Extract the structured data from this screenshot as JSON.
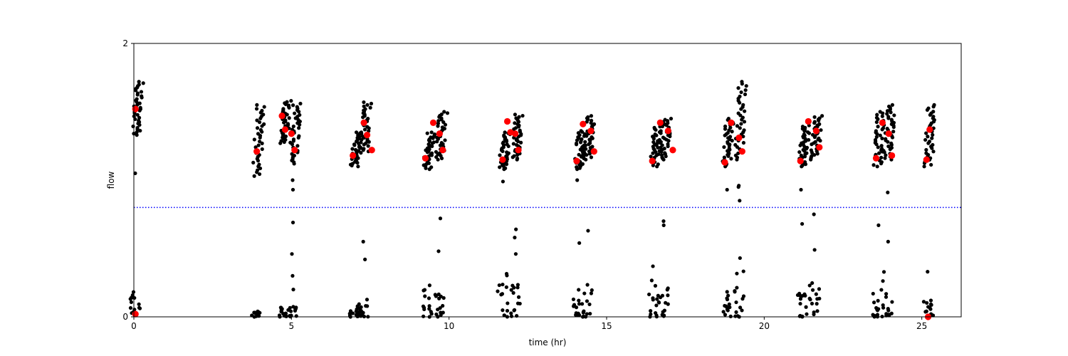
{
  "chart_data": {
    "type": "scatter",
    "title": "",
    "xlabel": "time (hr)",
    "ylabel": "flow",
    "xlim": [
      0,
      26.25
    ],
    "ylim": [
      0,
      2
    ],
    "xticks": [
      0,
      5,
      10,
      15,
      20,
      25
    ],
    "xtick_labels": [
      "0",
      "5",
      "10",
      "15",
      "20",
      "25"
    ],
    "yticks": [
      0,
      2
    ],
    "ytick_labels": [
      "0",
      "2"
    ],
    "grid": false,
    "threshold_line": {
      "y": 0.8,
      "color": "#0000ff",
      "style": "dotted"
    },
    "colors": {
      "raw": "#000000",
      "highlight": "#ff0000"
    },
    "clusters": [
      {
        "x": 0.05,
        "hmin": 1.33,
        "hmax": 1.72,
        "lmax": 0.25,
        "out": [
          1.05
        ]
      },
      {
        "x": 3.9,
        "hmin": 1.03,
        "hmax": 1.55,
        "lmax": 0.04,
        "out": []
      },
      {
        "x": 4.75,
        "hmin": 1.27,
        "hmax": 1.58,
        "lmax": 0.07,
        "out": []
      },
      {
        "x": 5.05,
        "hmin": 1.12,
        "hmax": 1.56,
        "lmax": 0.08,
        "out": [
          1.0,
          0.93,
          0.69,
          0.46,
          0.3,
          0.2
        ]
      },
      {
        "x": 7.0,
        "hmin": 1.1,
        "hmax": 1.35,
        "lmax": 0.08,
        "out": []
      },
      {
        "x": 7.3,
        "hmin": 1.2,
        "hmax": 1.57,
        "lmax": 0.14,
        "out": [
          0.55,
          0.42
        ]
      },
      {
        "x": 9.3,
        "hmin": 1.08,
        "hmax": 1.35,
        "lmax": 0.26,
        "out": []
      },
      {
        "x": 9.7,
        "hmin": 1.15,
        "hmax": 1.5,
        "lmax": 0.2,
        "out": [
          0.72,
          0.48
        ]
      },
      {
        "x": 11.7,
        "hmin": 1.08,
        "hmax": 1.35,
        "lmax": 0.32,
        "out": [
          0.99
        ]
      },
      {
        "x": 12.1,
        "hmin": 1.15,
        "hmax": 1.48,
        "lmax": 0.26,
        "out": [
          0.64,
          0.58,
          0.46
        ]
      },
      {
        "x": 14.1,
        "hmin": 1.08,
        "hmax": 1.36,
        "lmax": 0.22,
        "out": [
          0.54,
          1.0
        ]
      },
      {
        "x": 14.4,
        "hmin": 1.15,
        "hmax": 1.47,
        "lmax": 0.28,
        "out": [
          0.63
        ]
      },
      {
        "x": 16.5,
        "hmin": 1.1,
        "hmax": 1.4,
        "lmax": 0.3,
        "out": [
          0.37
        ]
      },
      {
        "x": 16.8,
        "hmin": 1.15,
        "hmax": 1.45,
        "lmax": 0.22,
        "out": [
          0.67,
          0.7
        ]
      },
      {
        "x": 18.8,
        "hmin": 1.1,
        "hmax": 1.45,
        "lmax": 0.2,
        "out": [
          0.93
        ]
      },
      {
        "x": 19.2,
        "hmin": 1.15,
        "hmax": 1.72,
        "lmax": 0.35,
        "out": [
          0.43,
          0.96,
          0.95,
          0.85
        ]
      },
      {
        "x": 21.2,
        "hmin": 1.1,
        "hmax": 1.4,
        "lmax": 0.18,
        "out": [
          0.68,
          0.93
        ]
      },
      {
        "x": 21.6,
        "hmin": 1.15,
        "hmax": 1.47,
        "lmax": 0.28,
        "out": [
          0.49,
          0.75
        ]
      },
      {
        "x": 23.6,
        "hmin": 1.1,
        "hmax": 1.5,
        "lmax": 0.22,
        "out": [
          0.67
        ]
      },
      {
        "x": 23.9,
        "hmin": 1.15,
        "hmax": 1.55,
        "lmax": 0.35,
        "out": [
          0.55,
          0.91
        ]
      },
      {
        "x": 25.2,
        "hmin": 1.1,
        "hmax": 1.55,
        "lmax": 0.14,
        "out": [
          0.33
        ]
      }
    ],
    "series": [
      {
        "x": [
          0.05,
          3.9,
          4.7,
          4.8,
          5.0,
          5.1,
          6.95,
          7.3,
          7.4,
          7.55,
          9.25,
          9.5,
          9.7,
          9.8,
          11.7,
          11.85,
          11.95,
          12.1,
          12.2,
          14.05,
          14.25,
          14.5,
          14.6,
          16.45,
          16.7,
          16.95,
          17.1,
          18.75,
          18.95,
          19.2,
          19.3,
          21.15,
          21.4,
          21.65,
          21.75,
          23.55,
          23.75,
          23.95,
          24.05,
          25.15,
          25.25,
          25.2,
          0.05
        ],
        "y": [
          1.52,
          1.21,
          1.47,
          1.37,
          1.34,
          1.22,
          1.18,
          1.42,
          1.33,
          1.22,
          1.16,
          1.42,
          1.34,
          1.22,
          1.15,
          1.43,
          1.35,
          1.34,
          1.22,
          1.14,
          1.41,
          1.36,
          1.21,
          1.14,
          1.42,
          1.36,
          1.22,
          1.13,
          1.42,
          1.31,
          1.21,
          1.14,
          1.43,
          1.36,
          1.24,
          1.16,
          1.42,
          1.34,
          1.18,
          1.15,
          1.37,
          0.0,
          0.02
        ]
      }
    ]
  }
}
